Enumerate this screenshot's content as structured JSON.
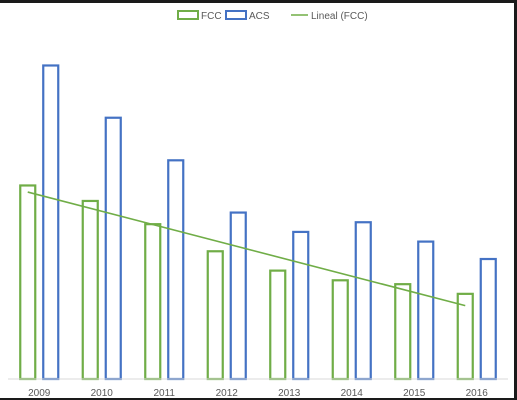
{
  "chart_data": {
    "type": "bar",
    "categories": [
      "2009",
      "2010",
      "2011",
      "2012",
      "2013",
      "2014",
      "2015",
      "2016"
    ],
    "series": [
      {
        "name": "FCC",
        "color": "#70ad47",
        "values": [
          100,
          92,
          80,
          66,
          56,
          51,
          49,
          44
        ]
      },
      {
        "name": "ACS",
        "color": "#4472c4",
        "values": [
          162,
          135,
          113,
          86,
          76,
          81,
          71,
          62
        ]
      }
    ],
    "trendline": {
      "name": "Lineal (FCC)",
      "series": "FCC",
      "type": "linear",
      "color": "#70ad47"
    },
    "ylim": [
      0,
      170
    ],
    "grid": false,
    "legend_position": "top",
    "xlabel": "",
    "ylabel": ""
  }
}
